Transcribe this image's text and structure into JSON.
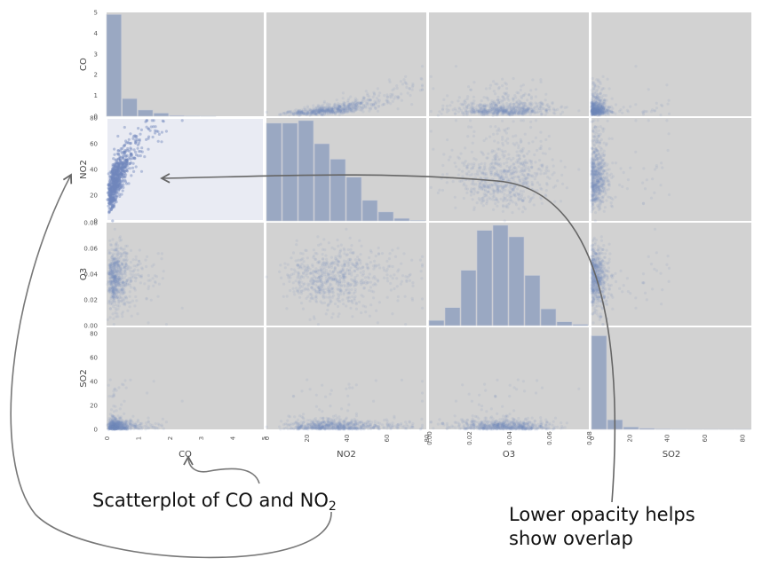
{
  "chart_data": {
    "type": "scatter",
    "matrix": "scatter_matrix",
    "variables": [
      "CO",
      "NO2",
      "O3",
      "SO2"
    ],
    "axis_labels": {
      "x": [
        "CO",
        "NO2",
        "O3",
        "SO2"
      ],
      "y": [
        "CO",
        "NO2",
        "O3",
        "SO2"
      ]
    },
    "x_ticks": {
      "CO": [
        "0",
        "1",
        "2",
        "3",
        "4",
        "5"
      ],
      "NO2": [
        "0",
        "20",
        "40",
        "60",
        "80"
      ],
      "O3": [
        "0.00",
        "0.02",
        "0.04",
        "0.06",
        "0.08"
      ],
      "SO2": [
        "0",
        "20",
        "40",
        "60",
        "80"
      ]
    },
    "y_ticks": {
      "CO": [
        "0",
        "1",
        "2",
        "3",
        "4",
        "5"
      ],
      "NO2": [
        "0",
        "20",
        "40",
        "60",
        "80"
      ],
      "O3": [
        "0.00",
        "0.02",
        "0.04",
        "0.06",
        "0.08"
      ],
      "SO2": [
        "0",
        "20",
        "40",
        "60",
        "80"
      ]
    },
    "ranges": {
      "CO": [
        0,
        5
      ],
      "NO2": [
        0,
        80
      ],
      "O3": [
        0,
        0.08
      ],
      "SO2": [
        0,
        85
      ]
    },
    "histograms": {
      "CO": {
        "bin_edges": [
          0,
          0.5,
          1,
          1.5,
          2,
          2.5,
          3,
          3.5,
          4,
          4.5,
          5
        ],
        "heights": [
          4.9,
          0.85,
          0.3,
          0.15,
          0.04,
          0.02,
          0.01,
          0,
          0,
          0
        ]
      },
      "NO2": {
        "bin_edges": [
          0,
          8,
          16,
          24,
          32,
          40,
          48,
          56,
          64,
          72,
          80
        ],
        "heights": [
          76,
          76,
          78,
          60,
          48,
          34,
          16,
          7,
          2,
          0.5
        ]
      },
      "O3": {
        "bin_edges": [
          0,
          0.008,
          0.016,
          0.024,
          0.032,
          0.04,
          0.048,
          0.056,
          0.064,
          0.072,
          0.08
        ],
        "heights": [
          0.004,
          0.014,
          0.043,
          0.074,
          0.078,
          0.069,
          0.039,
          0.013,
          0.003,
          0.001
        ]
      },
      "SO2": {
        "bin_edges": [
          0,
          8.5,
          17,
          25.5,
          34,
          42.5,
          51,
          59.5,
          68,
          76.5,
          85
        ],
        "heights": [
          78,
          8,
          2,
          1,
          0.5,
          0.3,
          0.2,
          0.1,
          0.1,
          0.1
        ]
      }
    },
    "highlighted_cell": {
      "row": "NO2",
      "col": "CO"
    },
    "colors": {
      "panel_bg": "#d2d2d2",
      "highlight_bg": "#e9ebf3",
      "points": "#7088bd",
      "bars": "#9aa8c2",
      "annotation_arrow": "#888888"
    },
    "point_opacity": 0.12,
    "grid": false,
    "legend": "none"
  },
  "annotations": {
    "scatter_note": {
      "prefix": "Scatterplot of CO and NO",
      "subscript": "2"
    },
    "opacity_note": [
      "Lower opacity helps",
      "show overlap"
    ]
  }
}
